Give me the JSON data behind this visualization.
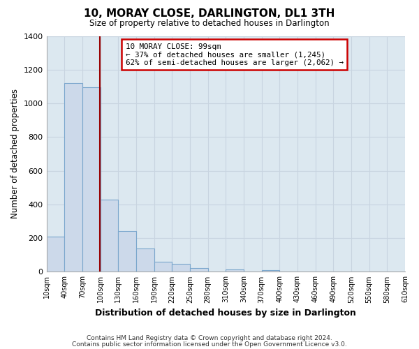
{
  "title": "10, MORAY CLOSE, DARLINGTON, DL1 3TH",
  "subtitle": "Size of property relative to detached houses in Darlington",
  "xlabel": "Distribution of detached houses by size in Darlington",
  "ylabel": "Number of detached properties",
  "footer_lines": [
    "Contains HM Land Registry data © Crown copyright and database right 2024.",
    "Contains public sector information licensed under the Open Government Licence v3.0."
  ],
  "bin_edges": [
    10,
    40,
    70,
    100,
    130,
    160,
    190,
    220,
    250,
    280,
    310,
    340,
    370,
    400,
    430,
    460,
    490,
    520,
    550,
    580,
    610
  ],
  "bar_heights": [
    210,
    1120,
    1095,
    430,
    240,
    140,
    60,
    48,
    22,
    0,
    15,
    0,
    10,
    0,
    0,
    0,
    0,
    0,
    0,
    0
  ],
  "bar_color": "#ccd9ea",
  "bar_edgecolor": "#7aa6cc",
  "property_line_x": 99,
  "property_line_color": "#990000",
  "annotation_line1": "10 MORAY CLOSE: 99sqm",
  "annotation_line2": "← 37% of detached houses are smaller (1,245)",
  "annotation_line3": "62% of semi-detached houses are larger (2,062) →",
  "annotation_box_edgecolor": "#cc0000",
  "annotation_box_facecolor": "#ffffff",
  "ylim": [
    0,
    1400
  ],
  "yticks": [
    0,
    200,
    400,
    600,
    800,
    1000,
    1200,
    1400
  ],
  "tick_labels": [
    "10sqm",
    "40sqm",
    "70sqm",
    "100sqm",
    "130sqm",
    "160sqm",
    "190sqm",
    "220sqm",
    "250sqm",
    "280sqm",
    "310sqm",
    "340sqm",
    "370sqm",
    "400sqm",
    "430sqm",
    "460sqm",
    "490sqm",
    "520sqm",
    "550sqm",
    "580sqm",
    "610sqm"
  ],
  "grid_color": "#c8d4e0",
  "plot_bg_color": "#dce8f0",
  "fig_bg_color": "#ffffff",
  "xlim_left": 10,
  "xlim_right": 610
}
